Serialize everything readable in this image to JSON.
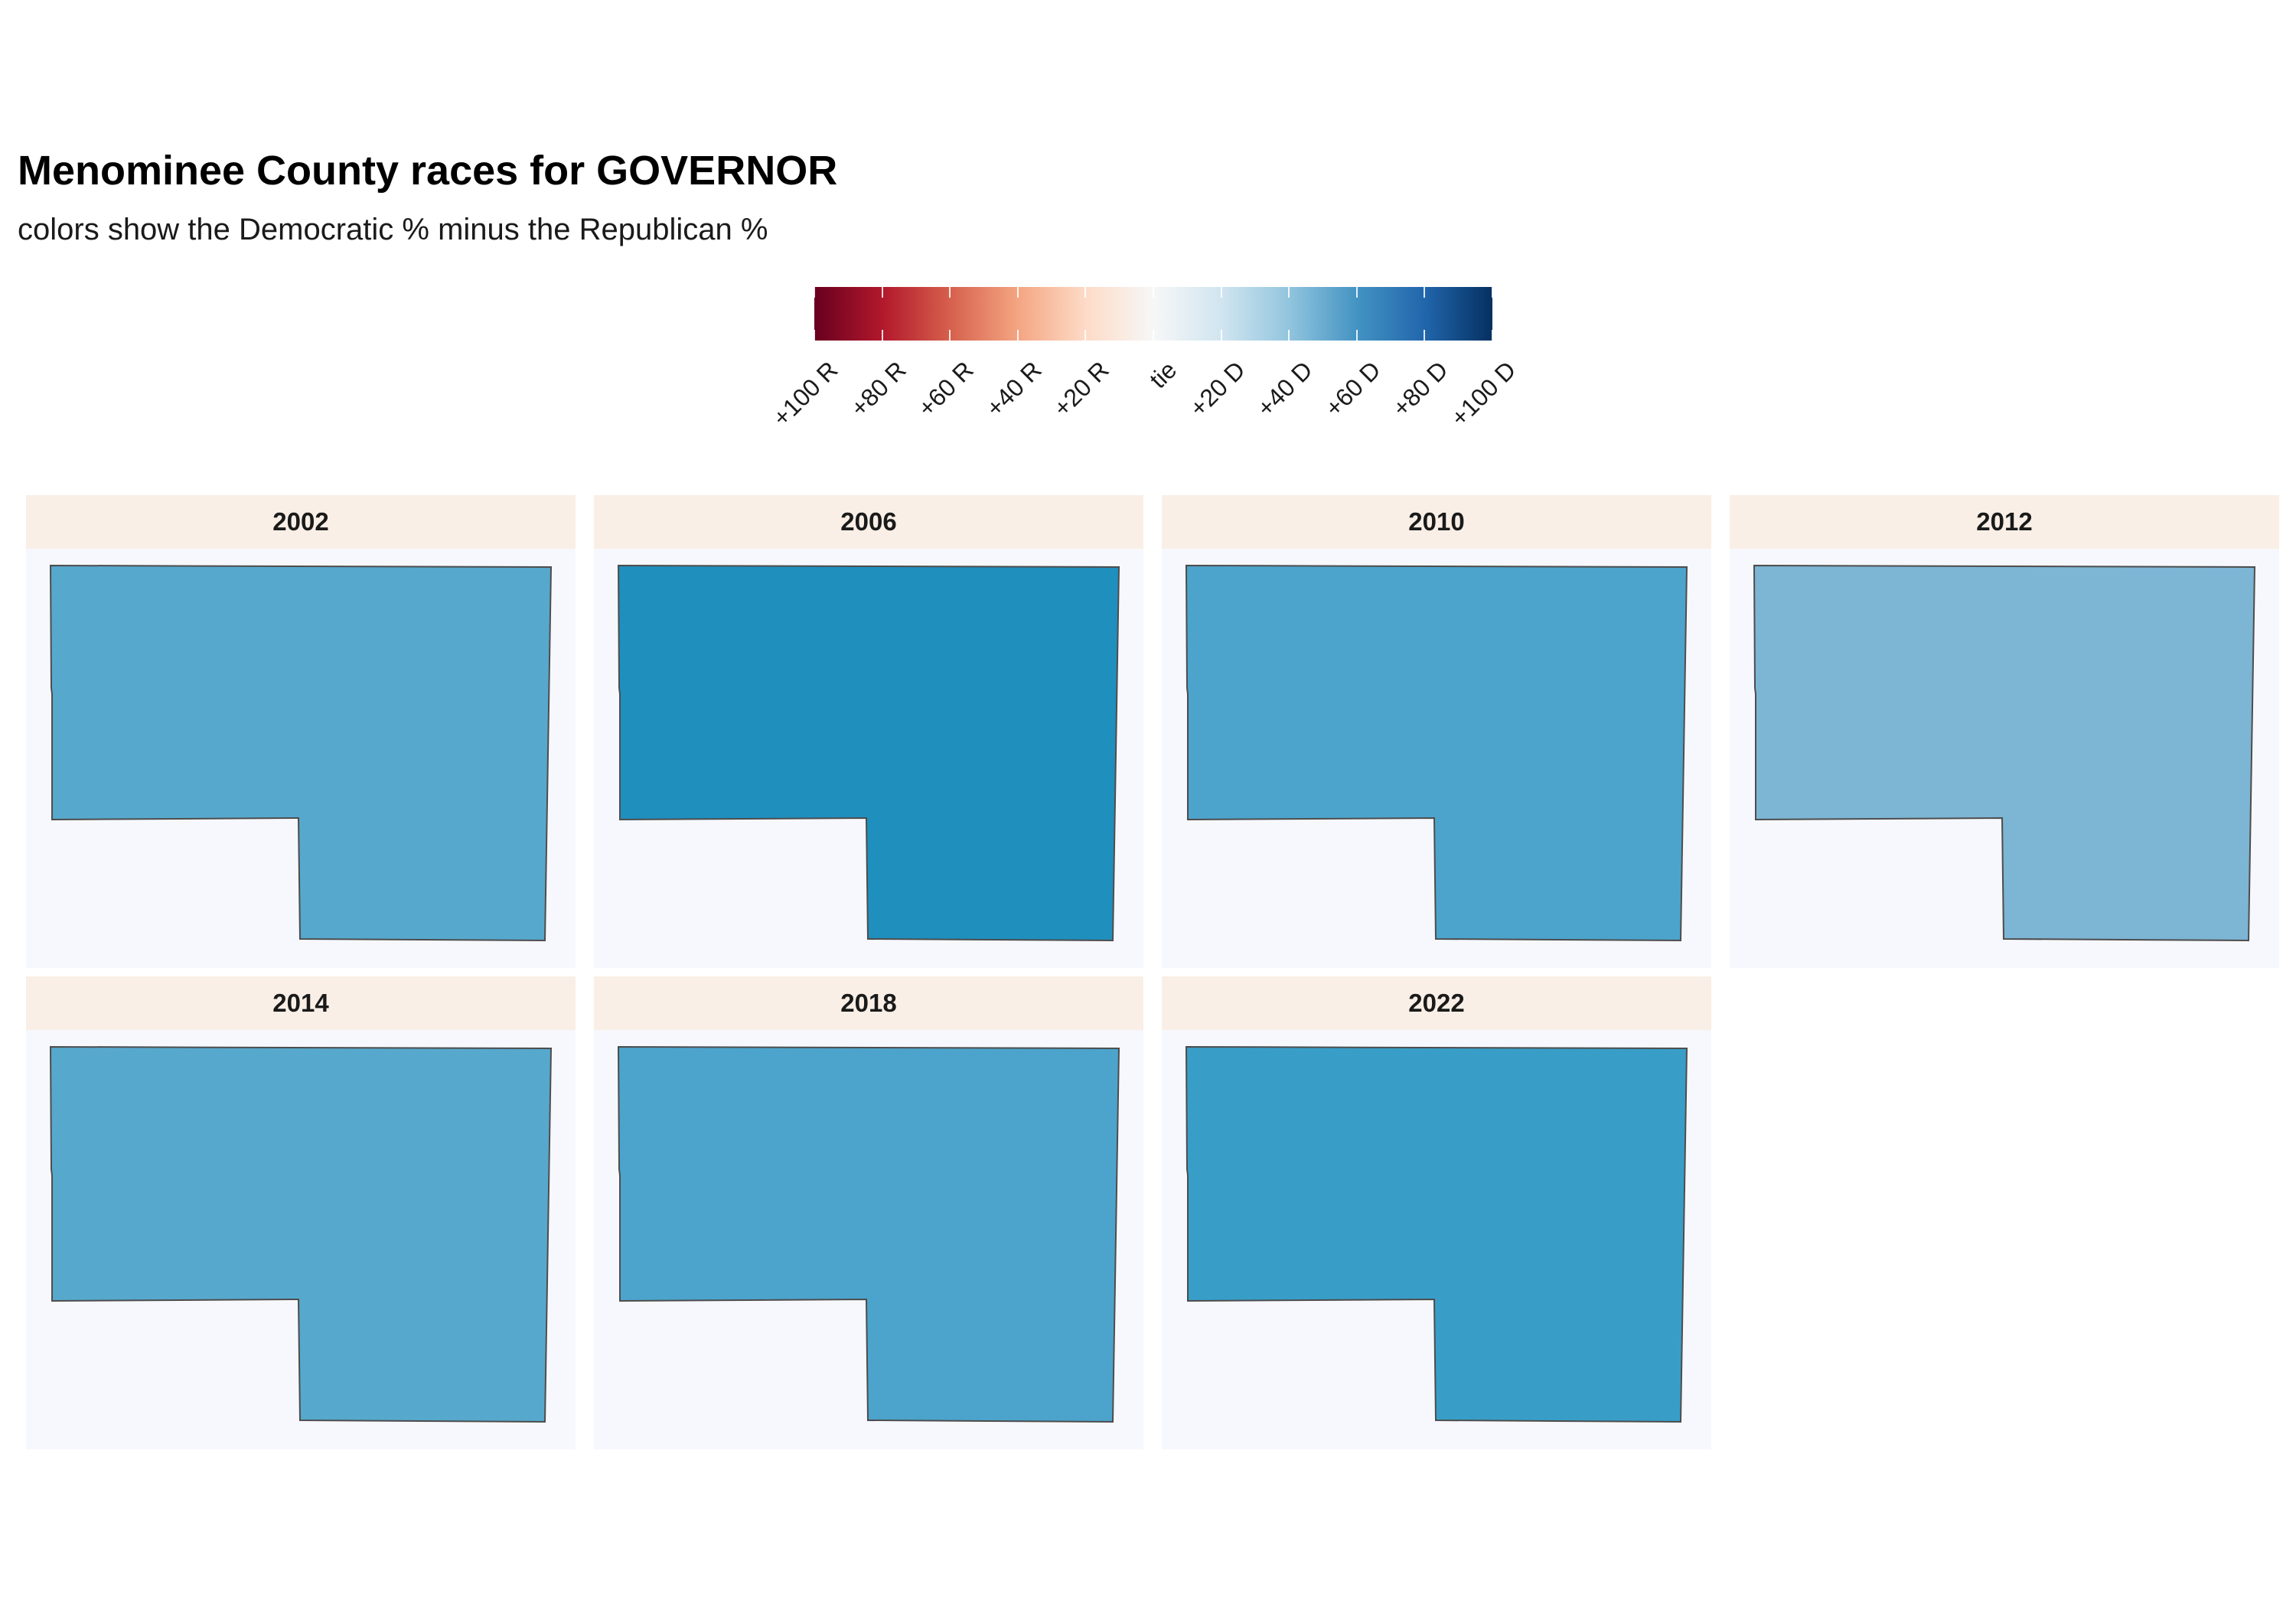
{
  "title": "Menominee County races for GOVERNOR",
  "subtitle": "colors show the Democratic % minus the Republican %",
  "legend": {
    "labels": [
      "+100 R",
      "+80 R",
      "+60 R",
      "+40 R",
      "+20 R",
      "tie",
      "+20 D",
      "+40 D",
      "+60 D",
      "+80 D",
      "+100 D"
    ],
    "colors": [
      "#67001f",
      "#b2182b",
      "#d6604d",
      "#f4a582",
      "#fddbc7",
      "#f7f7f7",
      "#d1e5f0",
      "#92c5de",
      "#4393c3",
      "#2166ac",
      "#053061"
    ]
  },
  "chart_data": {
    "type": "choropleth",
    "county": "Menominee County",
    "race": "GOVERNOR",
    "metric": "Democratic % minus Republican %",
    "scale_range": [
      -100,
      100
    ],
    "panels": [
      {
        "year": "2002",
        "margin": 58,
        "fill": "#57a8cd"
      },
      {
        "year": "2006",
        "margin": 75,
        "fill": "#1f8fbe"
      },
      {
        "year": "2010",
        "margin": 60,
        "fill": "#4ca4cc"
      },
      {
        "year": "2012",
        "margin": 45,
        "fill": "#7db5d4"
      },
      {
        "year": "2014",
        "margin": 58,
        "fill": "#57a8cd"
      },
      {
        "year": "2018",
        "margin": 60,
        "fill": "#4ca4cc"
      },
      {
        "year": "2022",
        "margin": 67,
        "fill": "#389ec8"
      }
    ]
  }
}
